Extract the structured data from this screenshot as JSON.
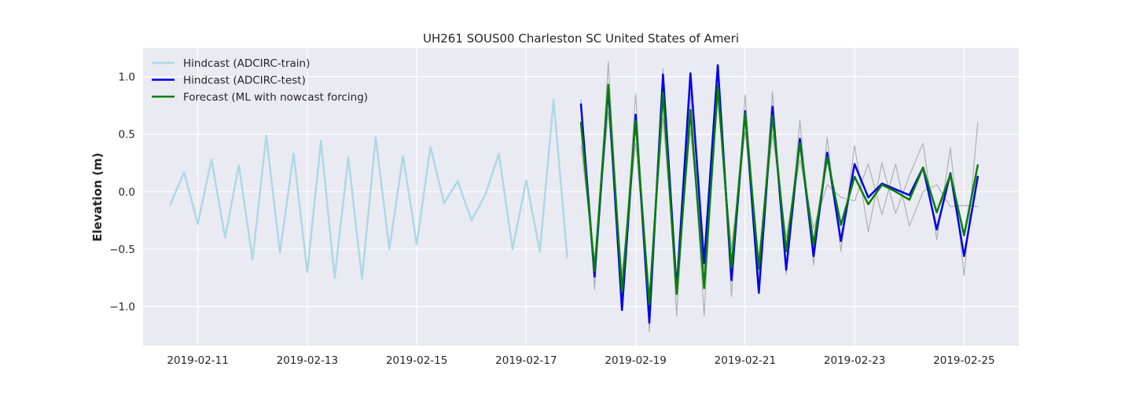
{
  "chart_data": {
    "type": "line",
    "title": "UH261 SOUS00 Charleston SC United States of Ameri",
    "xlabel": "",
    "ylabel": "Elevation (m)",
    "xlim": [
      "2019-02-10 00:00",
      "2019-02-26 00:00"
    ],
    "ylim": [
      -1.34,
      1.25
    ],
    "x_ticks": [
      "2019-02-11",
      "2019-02-13",
      "2019-02-15",
      "2019-02-17",
      "2019-02-19",
      "2019-02-21",
      "2019-02-23",
      "2019-02-25"
    ],
    "y_ticks": [
      "-1.0",
      "-0.5",
      "0.0",
      "0.5",
      "1.0"
    ],
    "grid": true,
    "legend_position": "top-left",
    "series": [
      {
        "name": "Hindcast (ADCIRC-train)",
        "color": "#add8e6",
        "width": 2.5,
        "x": [
          "2019-02-10 12:00",
          "2019-02-10 18:00",
          "2019-02-11 00:00",
          "2019-02-11 06:00",
          "2019-02-11 12:00",
          "2019-02-11 18:00",
          "2019-02-12 00:00",
          "2019-02-12 06:00",
          "2019-02-12 12:00",
          "2019-02-12 18:00",
          "2019-02-13 00:00",
          "2019-02-13 06:00",
          "2019-02-13 12:00",
          "2019-02-13 18:00",
          "2019-02-14 00:00",
          "2019-02-14 06:00",
          "2019-02-14 12:00",
          "2019-02-14 18:00",
          "2019-02-15 00:00",
          "2019-02-15 06:00",
          "2019-02-15 12:00",
          "2019-02-15 18:00",
          "2019-02-16 00:00",
          "2019-02-16 06:00",
          "2019-02-16 12:00",
          "2019-02-16 18:00",
          "2019-02-17 00:00",
          "2019-02-17 06:00",
          "2019-02-17 12:00",
          "2019-02-17 18:00"
        ],
        "values": [
          -0.11,
          0.17,
          -0.28,
          0.28,
          -0.4,
          0.23,
          -0.59,
          0.49,
          -0.53,
          0.33,
          -0.7,
          0.44,
          -0.75,
          0.3,
          -0.76,
          0.47,
          -0.5,
          0.31,
          -0.46,
          0.39,
          -0.1,
          0.09,
          -0.25,
          -0.03,
          0.33,
          -0.5,
          0.1,
          -0.52,
          0.8,
          -0.57
        ]
      },
      {
        "name": "Hindcast (ADCIRC-test)",
        "color": "#0000ee",
        "width": 2.5,
        "x": [
          "2019-02-18 00:00",
          "2019-02-18 06:00",
          "2019-02-18 12:00",
          "2019-02-18 18:00",
          "2019-02-19 00:00",
          "2019-02-19 06:00",
          "2019-02-19 12:00",
          "2019-02-19 18:00",
          "2019-02-20 00:00",
          "2019-02-20 06:00",
          "2019-02-20 12:00",
          "2019-02-20 18:00",
          "2019-02-21 00:00",
          "2019-02-21 06:00",
          "2019-02-21 12:00",
          "2019-02-21 18:00",
          "2019-02-22 00:00",
          "2019-02-22 06:00",
          "2019-02-22 12:00",
          "2019-02-22 18:00",
          "2019-02-23 00:00",
          "2019-02-23 06:00",
          "2019-02-23 12:00",
          "2019-02-23 18:00",
          "2019-02-24 00:00",
          "2019-02-24 06:00",
          "2019-02-24 12:00",
          "2019-02-24 18:00",
          "2019-02-25 00:00",
          "2019-02-25 06:00"
        ],
        "values": [
          0.76,
          -0.74,
          0.9,
          -1.03,
          0.67,
          -1.14,
          1.02,
          -0.85,
          1.03,
          -0.62,
          1.1,
          -0.77,
          0.7,
          -0.88,
          0.74,
          -0.68,
          0.46,
          -0.56,
          0.34,
          -0.43,
          0.24,
          -0.05,
          0.07,
          0.02,
          -0.03,
          0.21,
          -0.33,
          0.16,
          -0.56,
          0.13
        ]
      },
      {
        "name": "Forecast (ML with nowcast forcing)",
        "color": "#008000",
        "width": 2.5,
        "x": [
          "2019-02-18 00:00",
          "2019-02-18 06:00",
          "2019-02-18 12:00",
          "2019-02-18 18:00",
          "2019-02-19 00:00",
          "2019-02-19 06:00",
          "2019-02-19 12:00",
          "2019-02-19 18:00",
          "2019-02-20 00:00",
          "2019-02-20 06:00",
          "2019-02-20 12:00",
          "2019-02-20 18:00",
          "2019-02-21 00:00",
          "2019-02-21 06:00",
          "2019-02-21 12:00",
          "2019-02-21 18:00",
          "2019-02-22 00:00",
          "2019-02-22 06:00",
          "2019-02-22 12:00",
          "2019-02-22 18:00",
          "2019-02-23 00:00",
          "2019-02-23 06:00",
          "2019-02-23 12:00",
          "2019-02-23 18:00",
          "2019-02-24 00:00",
          "2019-02-24 06:00",
          "2019-02-24 12:00",
          "2019-02-24 18:00",
          "2019-02-25 00:00",
          "2019-02-25 06:00"
        ],
        "values": [
          0.6,
          -0.69,
          0.93,
          -0.87,
          0.62,
          -0.98,
          0.86,
          -0.89,
          0.71,
          -0.84,
          0.92,
          -0.66,
          0.68,
          -0.67,
          0.66,
          -0.52,
          0.42,
          -0.46,
          0.3,
          -0.29,
          0.13,
          -0.11,
          0.06,
          0.0,
          -0.07,
          0.21,
          -0.18,
          0.15,
          -0.38,
          0.23
        ]
      },
      {
        "name": "",
        "color": "#b0b0b0",
        "width": 1.2,
        "x": [
          "2019-02-18 00:00",
          "2019-02-18 06:00",
          "2019-02-18 12:00",
          "2019-02-18 18:00",
          "2019-02-19 00:00",
          "2019-02-19 06:00",
          "2019-02-19 12:00",
          "2019-02-19 18:00",
          "2019-02-20 00:00",
          "2019-02-20 06:00",
          "2019-02-20 12:00",
          "2019-02-20 18:00",
          "2019-02-21 00:00",
          "2019-02-21 06:00",
          "2019-02-21 12:00",
          "2019-02-21 18:00",
          "2019-02-22 00:00",
          "2019-02-22 06:00",
          "2019-02-22 12:00",
          "2019-02-22 18:00",
          "2019-02-23 00:00",
          "2019-02-23 06:00",
          "2019-02-23 12:00",
          "2019-02-23 18:00",
          "2019-02-24 00:00",
          "2019-02-24 06:00",
          "2019-02-24 12:00",
          "2019-02-24 18:00",
          "2019-02-25 00:00",
          "2019-02-25 06:00"
        ],
        "values": [
          0.8,
          -0.85,
          1.13,
          -0.95,
          0.85,
          -1.22,
          1.07,
          -1.08,
          0.86,
          -1.08,
          1.08,
          -0.91,
          0.84,
          -0.75,
          0.87,
          -0.72,
          0.62,
          -0.64,
          0.47,
          -0.52,
          0.4,
          -0.35,
          0.25,
          -0.19,
          0.14,
          0.42,
          -0.42,
          0.38,
          -0.73,
          0.6
        ]
      },
      {
        "name": "",
        "color": "#b0b0b0",
        "width": 1.2,
        "x": [
          "2019-02-18 00:00",
          "2019-02-18 06:00",
          "2019-02-18 12:00",
          "2019-02-18 18:00",
          "2019-02-19 00:00",
          "2019-02-19 06:00",
          "2019-02-19 12:00",
          "2019-02-19 18:00",
          "2019-02-20 00:00",
          "2019-02-20 06:00",
          "2019-02-20 12:00",
          "2019-02-20 18:00",
          "2019-02-21 00:00",
          "2019-02-21 06:00",
          "2019-02-21 12:00",
          "2019-02-21 18:00",
          "2019-02-22 00:00",
          "2019-02-22 06:00",
          "2019-02-22 12:00",
          "2019-02-22 18:00",
          "2019-02-23 00:00",
          "2019-02-23 06:00",
          "2019-02-23 12:00",
          "2019-02-23 18:00",
          "2019-02-24 00:00",
          "2019-02-24 06:00",
          "2019-02-24 12:00",
          "2019-02-24 18:00",
          "2019-02-25 00:00",
          "2019-02-25 06:00"
        ],
        "values": [
          0.4,
          -0.6,
          0.7,
          -0.72,
          0.42,
          -0.9,
          0.64,
          -0.78,
          0.54,
          -0.68,
          0.8,
          -0.5,
          0.52,
          -0.57,
          0.5,
          -0.4,
          0.28,
          -0.32,
          0.06,
          -0.05,
          -0.08,
          0.24,
          -0.2,
          0.24,
          -0.3,
          0.0,
          0.06,
          -0.13,
          -0.12,
          -0.13
        ]
      }
    ]
  }
}
